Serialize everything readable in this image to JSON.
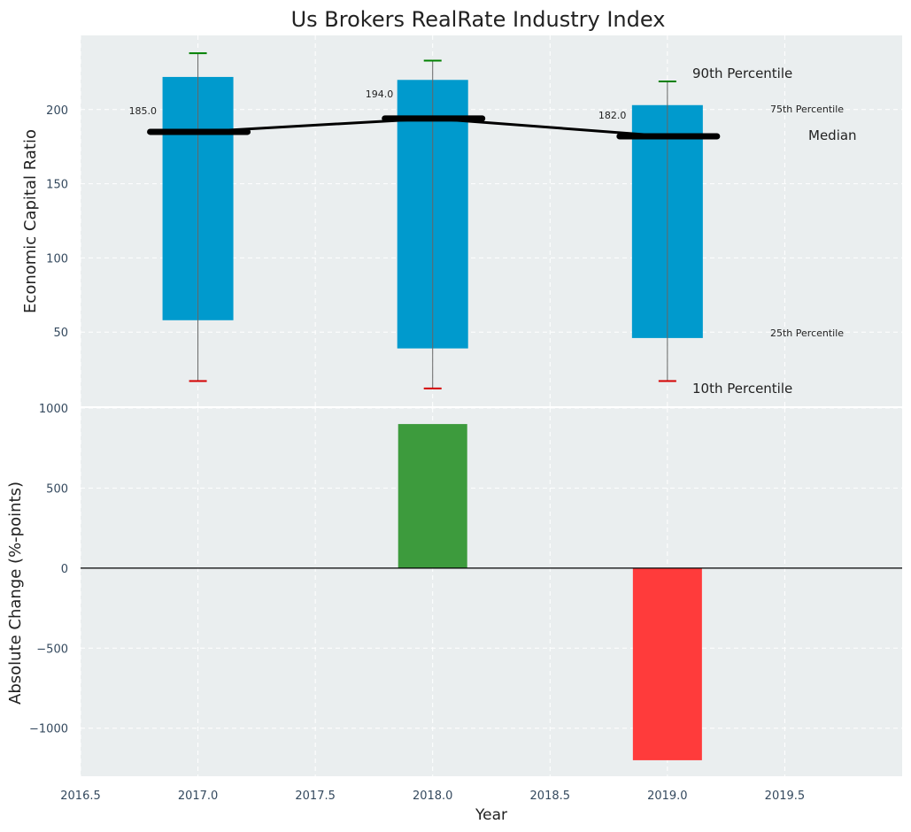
{
  "chart_data": [
    {
      "panel": "top",
      "type": "box-percentile",
      "title": "Us Brokers RealRate Industry Index",
      "ylabel": "Economic Capital Ratio",
      "xlabel": "",
      "xlim": [
        2016.5,
        2020.0
      ],
      "ylim": [
        0,
        250
      ],
      "yticks": [
        50,
        100,
        150,
        200
      ],
      "x": [
        2017.0,
        2018.0,
        2019.0
      ],
      "p10": [
        17,
        12,
        17
      ],
      "p25": [
        58,
        39,
        46
      ],
      "median": [
        185,
        194,
        182
      ],
      "p75": [
        222,
        220,
        203
      ],
      "p90": [
        238,
        233,
        219
      ],
      "median_labels": [
        "185.0",
        "194.0",
        "182.0"
      ],
      "annotations": {
        "p90": "90th Percentile",
        "p75": "75th Percentile",
        "median": "Median",
        "p25": "25th Percentile",
        "p10": "10th Percentile"
      },
      "colors": {
        "box": "#009acd",
        "whisker_top": "#008000",
        "whisker_bottom": "#d40000",
        "median": "#000000",
        "annot_blue": "#009acd"
      }
    },
    {
      "panel": "bottom",
      "type": "bar",
      "xlabel": "Year",
      "ylabel": "Absolute Change (%-points)",
      "xlim": [
        2016.5,
        2020.0
      ],
      "xticks": [
        2016.5,
        2017.0,
        2017.5,
        2018.0,
        2018.5,
        2019.0,
        2019.5
      ],
      "xtick_labels": [
        "2016.5",
        "2017.0",
        "2017.5",
        "2018.0",
        "2018.5",
        "2019.0",
        "2019.5"
      ],
      "ylim": [
        -1300,
        1000
      ],
      "yticks": [
        -1000,
        -500,
        0,
        500,
        1000
      ],
      "ytick_labels": [
        "−1000",
        "−500",
        "0",
        "500",
        "1000"
      ],
      "x": [
        2018.0,
        2019.0
      ],
      "values": [
        900,
        -1200
      ],
      "colors": {
        "positive": "#3d9b3d",
        "negative": "#ff3b3b"
      }
    }
  ]
}
